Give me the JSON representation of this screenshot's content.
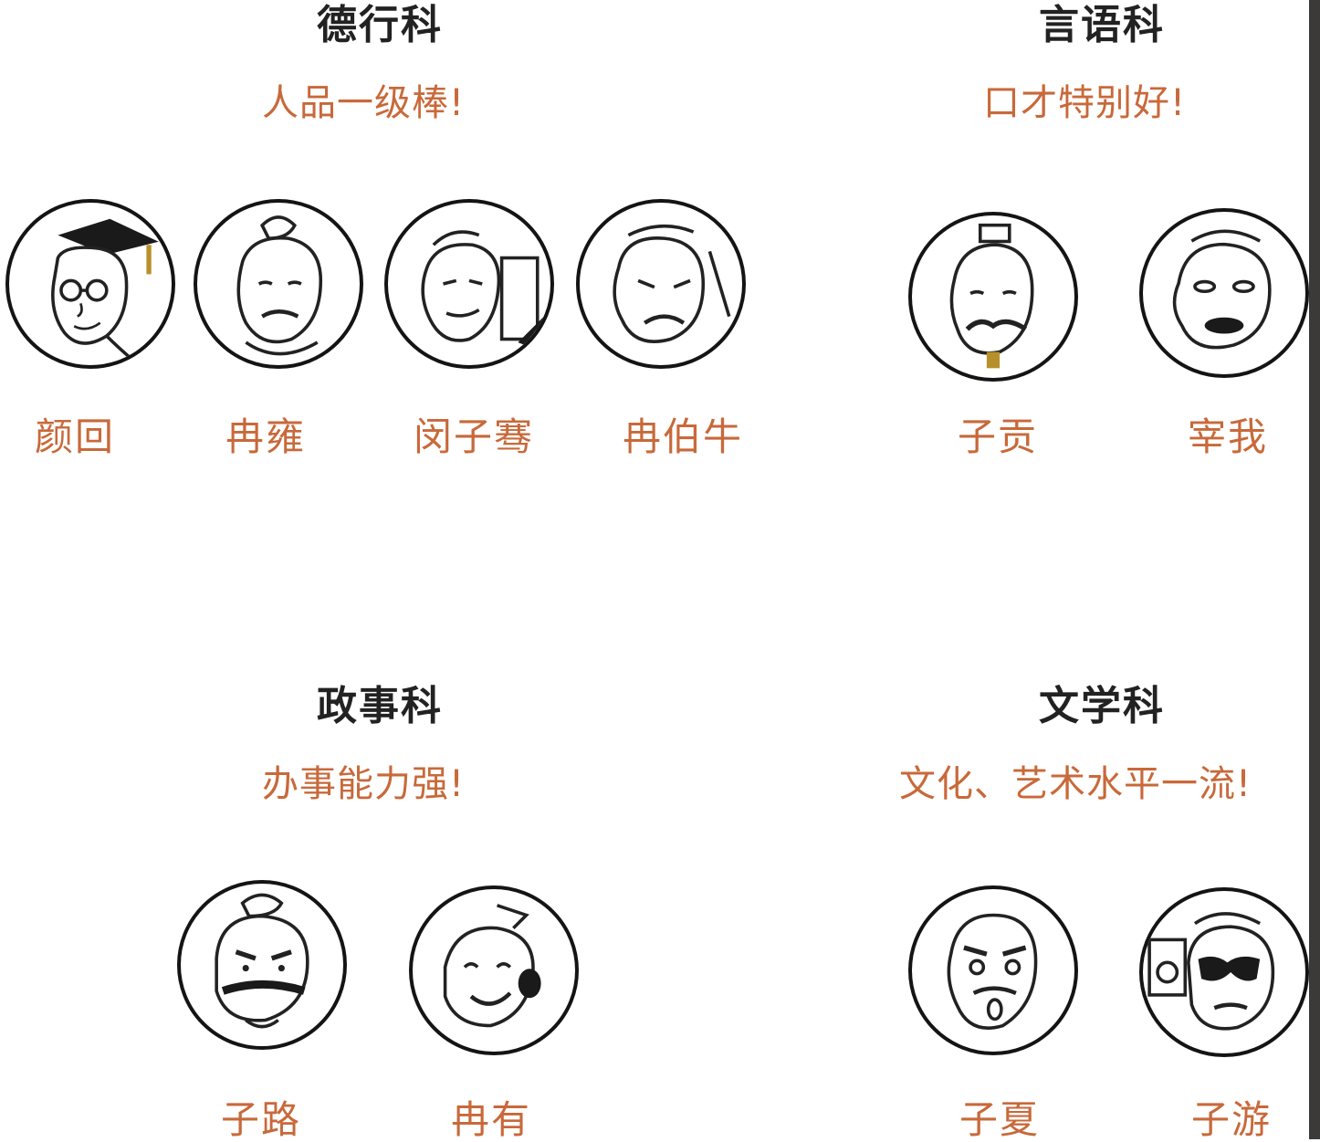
{
  "accent_color": "#c8693a",
  "sections": [
    {
      "title": "德行科",
      "subtitle": "人品一级棒!",
      "members": [
        {
          "name": "颜回",
          "icon": "scholar-cap-glasses-portrait-icon"
        },
        {
          "name": "冉雍",
          "icon": "topknot-smiling-portrait-icon"
        },
        {
          "name": "闵子骞",
          "icon": "writing-scholar-portrait-icon"
        },
        {
          "name": "冉伯牛",
          "icon": "frowning-elder-portrait-icon"
        }
      ]
    },
    {
      "title": "言语科",
      "subtitle": "口才特别好!",
      "members": [
        {
          "name": "子贡",
          "icon": "mustached-noble-portrait-icon"
        },
        {
          "name": "宰我",
          "icon": "thick-lipped-man-portrait-icon"
        }
      ]
    },
    {
      "title": "政事科",
      "subtitle": "办事能力强!",
      "members": [
        {
          "name": "子路",
          "icon": "bearded-warrior-portrait-icon"
        },
        {
          "name": "冉有",
          "icon": "laughing-official-portrait-icon"
        }
      ]
    },
    {
      "title": "文学科",
      "subtitle": "文化、艺术水平一流!",
      "members": [
        {
          "name": "子夏",
          "icon": "surprised-scholar-portrait-icon"
        },
        {
          "name": "子游",
          "icon": "sunglasses-boombox-portrait-icon"
        }
      ]
    }
  ]
}
